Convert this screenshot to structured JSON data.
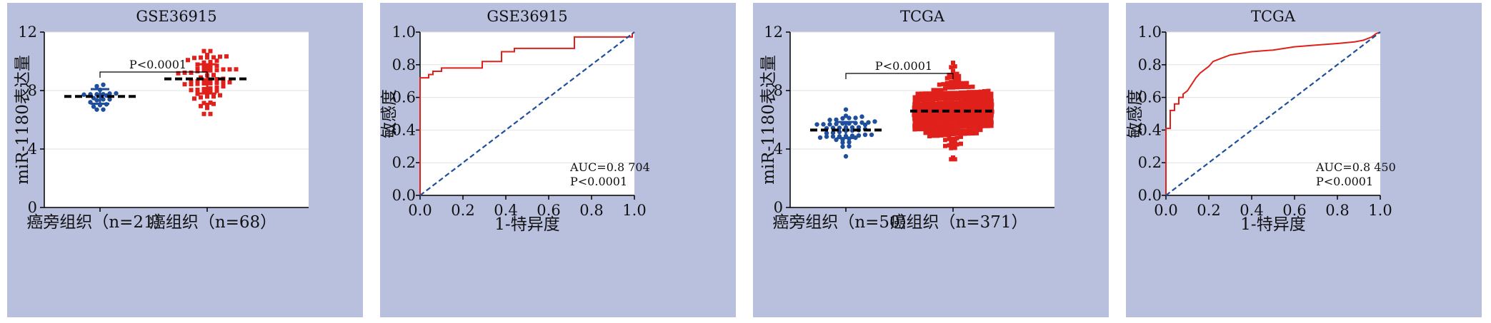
{
  "chart_data": [
    {
      "type": "scatter",
      "title": "GSE36915",
      "ylabel": "miR-1180表达量",
      "ylim": [
        0,
        12
      ],
      "yticks": [
        "0",
        "4",
        "8",
        "12"
      ],
      "grid": true,
      "categories": [
        "癌旁组织（n=21）",
        "癌组织（n=68）"
      ],
      "groups": [
        {
          "n": 21,
          "mean": 7.6,
          "sd": 0.5,
          "min": 6.7,
          "max": 8.4,
          "color": "#1f4e9c"
        },
        {
          "n": 68,
          "mean": 8.8,
          "sd": 1.0,
          "min": 6.4,
          "max": 10.7,
          "color": "#e0201b"
        }
      ],
      "annotation": "P<0.0001"
    },
    {
      "type": "line",
      "title": "GSE36915",
      "xlabel": "1-特异度",
      "ylabel": "敏感度",
      "xlim": [
        0,
        1
      ],
      "ylim": [
        0,
        1
      ],
      "xticks": [
        "0.0",
        "0.2",
        "0.4",
        "0.6",
        "0.8",
        "1.0"
      ],
      "yticks": [
        "0.0",
        "0.2",
        "0.4",
        "0.6",
        "0.8",
        "1.0"
      ],
      "grid": true,
      "series": [
        {
          "style": "roc",
          "color": "#e0201b",
          "x": [
            0,
            0,
            0.04,
            0.04,
            0.06,
            0.06,
            0.1,
            0.1,
            0.15,
            0.15,
            0.29,
            0.29,
            0.38,
            0.38,
            0.44,
            0.44,
            0.72,
            0.72,
            0.99,
            0.99,
            1.0
          ],
          "y": [
            0,
            0.72,
            0.72,
            0.74,
            0.74,
            0.76,
            0.76,
            0.78,
            0.78,
            0.78,
            0.78,
            0.82,
            0.82,
            0.88,
            0.88,
            0.9,
            0.9,
            0.97,
            0.97,
            0.99,
            1.0
          ]
        },
        {
          "style": "diagonal",
          "color": "#1f4e9c",
          "x": [
            0,
            1
          ],
          "y": [
            0,
            1
          ]
        }
      ],
      "annotations": [
        "AUC=0.8 704",
        "P<0.0001"
      ]
    },
    {
      "type": "scatter",
      "title": "TCGA",
      "ylabel": "miR-1180表达量",
      "ylim": [
        0,
        12
      ],
      "yticks": [
        "0",
        "4",
        "8",
        "12"
      ],
      "grid": true,
      "categories": [
        "癌旁组织（n=50）",
        "癌组织（n=371）"
      ],
      "groups": [
        {
          "n": 50,
          "mean": 5.3,
          "sd": 0.55,
          "min": 3.5,
          "max": 6.7,
          "color": "#1f4e9c"
        },
        {
          "n": 371,
          "mean": 6.6,
          "sd": 1.1,
          "min": 3.3,
          "max": 9.9,
          "color": "#e0201b"
        }
      ],
      "annotation": "P<0.0001"
    },
    {
      "type": "line",
      "title": "TCGA",
      "xlabel": "1-特异度",
      "ylabel": "敏感度",
      "xlim": [
        0,
        1
      ],
      "ylim": [
        0,
        1
      ],
      "xticks": [
        "0.0",
        "0.2",
        "0.4",
        "0.6",
        "0.8",
        "1.0"
      ],
      "yticks": [
        "0.0",
        "0.2",
        "0.4",
        "0.6",
        "0.8",
        "1.0"
      ],
      "grid": true,
      "series": [
        {
          "style": "roc",
          "color": "#e0201b",
          "x": [
            0,
            0,
            0.02,
            0.02,
            0.04,
            0.04,
            0.06,
            0.06,
            0.08,
            0.08,
            0.1,
            0.12,
            0.14,
            0.16,
            0.18,
            0.2,
            0.22,
            0.26,
            0.3,
            0.35,
            0.4,
            0.5,
            0.6,
            0.7,
            0.8,
            0.88,
            0.92,
            0.96,
            0.98,
            1.0
          ],
          "y": [
            0,
            0.41,
            0.41,
            0.52,
            0.52,
            0.56,
            0.56,
            0.6,
            0.6,
            0.62,
            0.64,
            0.68,
            0.72,
            0.75,
            0.77,
            0.79,
            0.82,
            0.84,
            0.86,
            0.87,
            0.88,
            0.89,
            0.91,
            0.92,
            0.93,
            0.94,
            0.95,
            0.97,
            0.99,
            1.0
          ]
        },
        {
          "style": "diagonal",
          "color": "#1f4e9c",
          "x": [
            0,
            1
          ],
          "y": [
            0,
            1
          ]
        }
      ],
      "annotations": [
        "AUC=0.8 450",
        "P<0.0001"
      ]
    }
  ]
}
